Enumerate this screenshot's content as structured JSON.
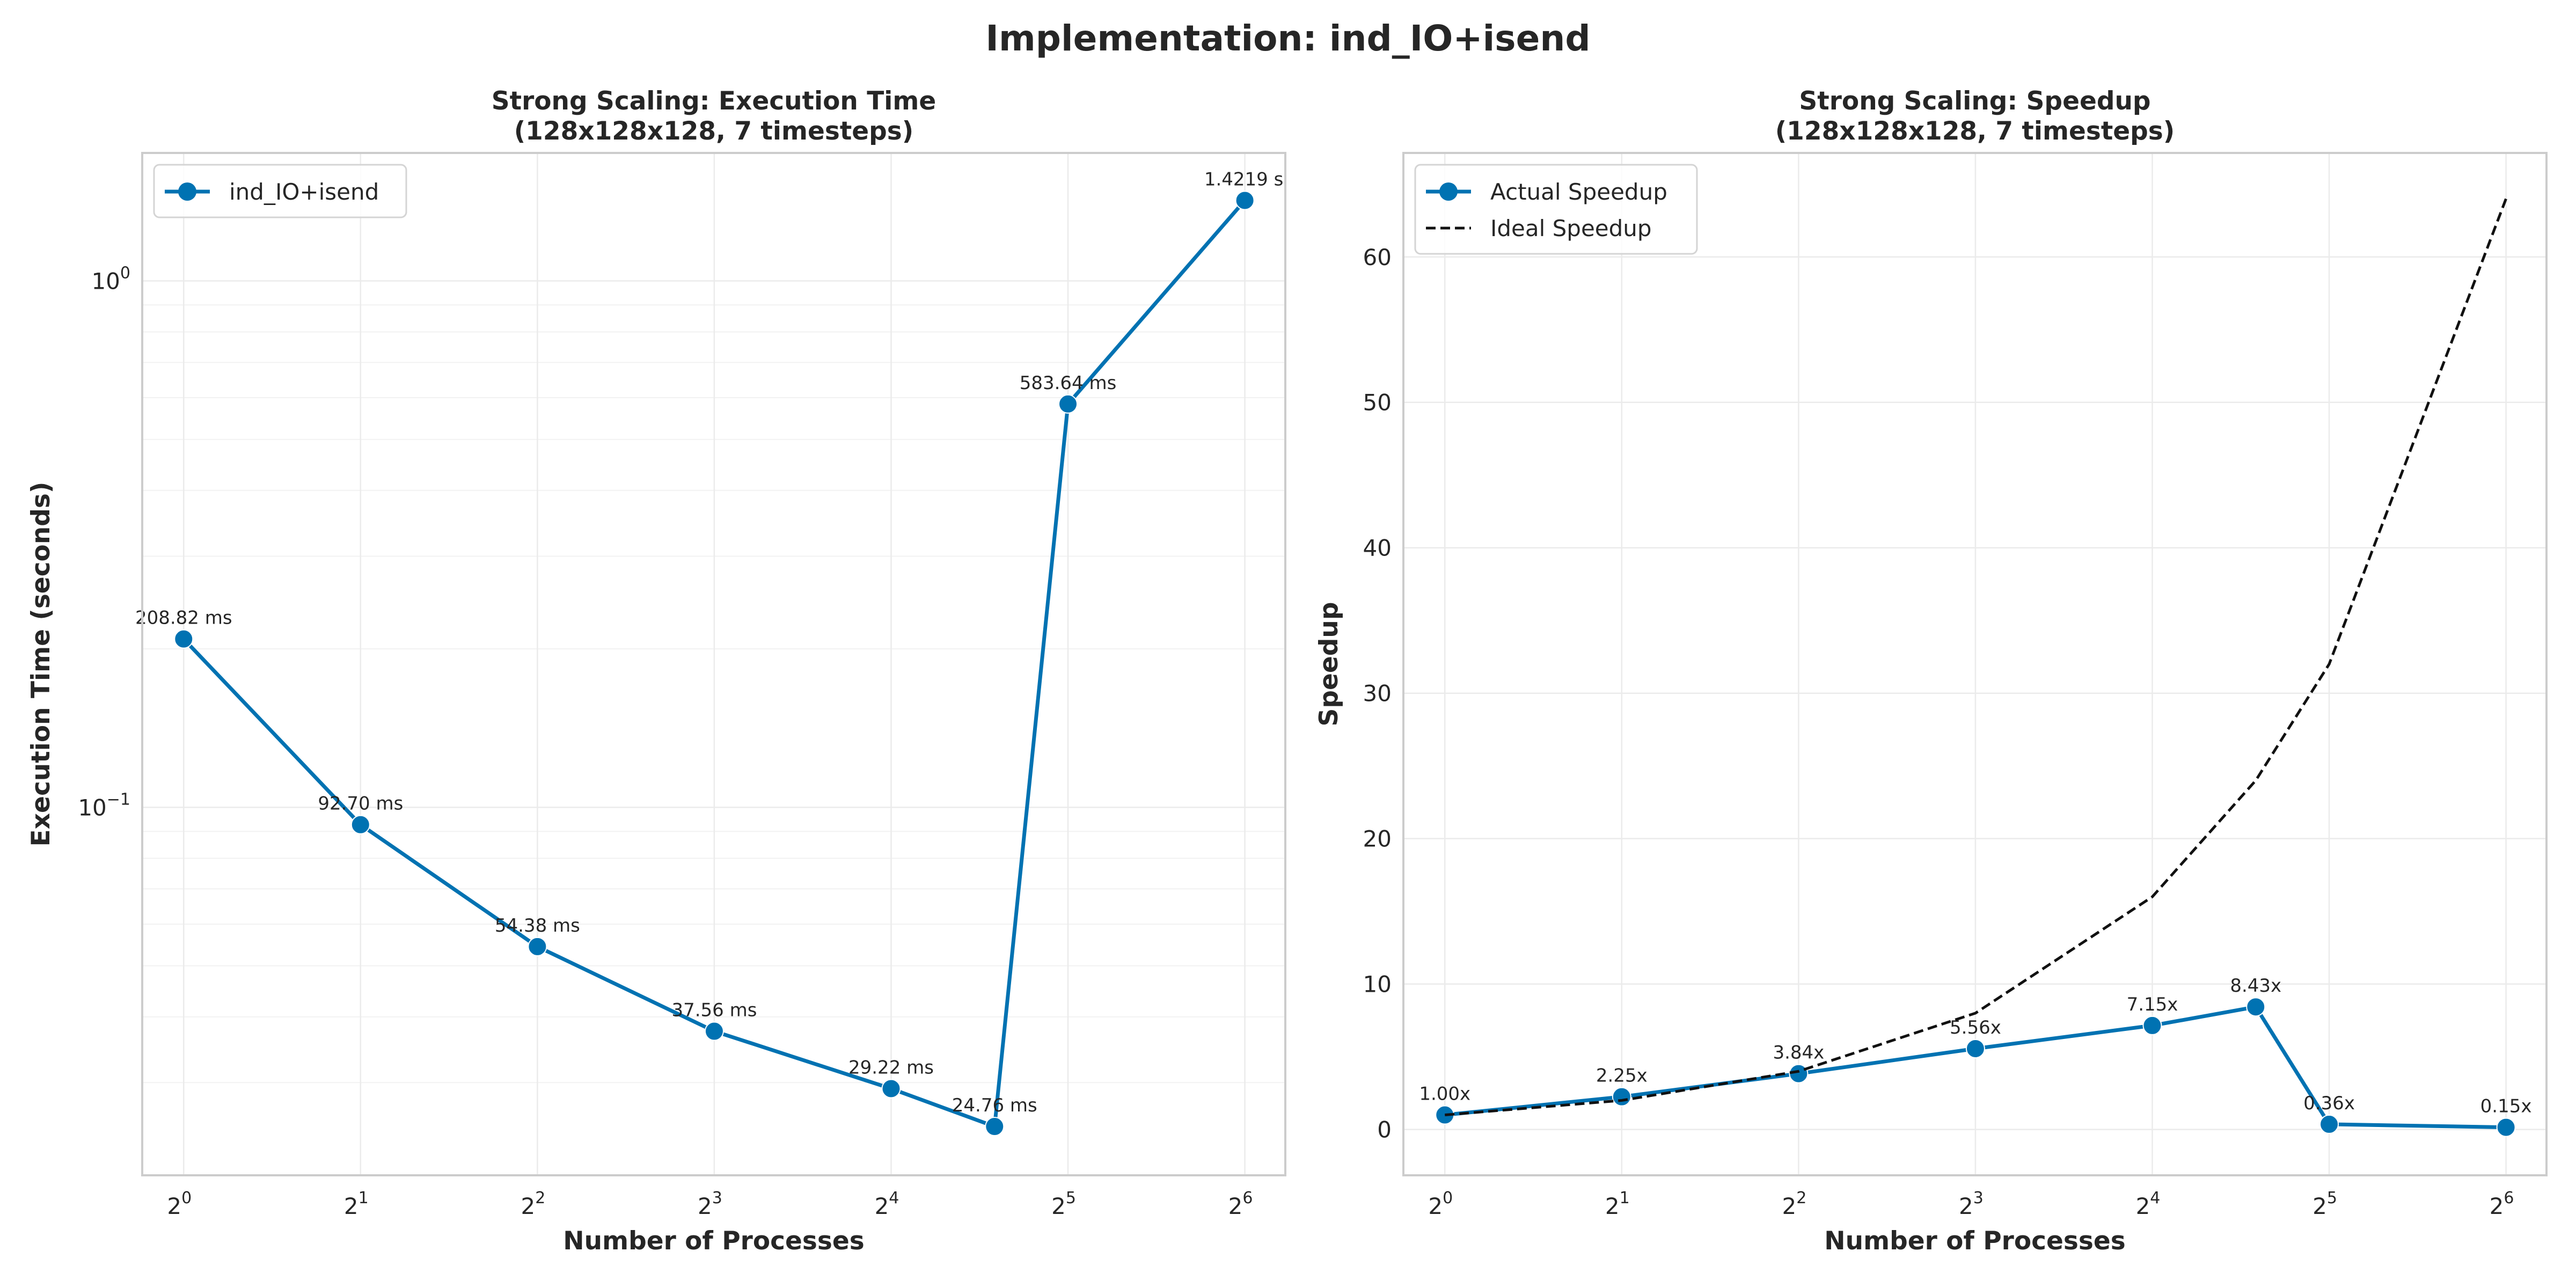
{
  "figure": {
    "title": "Implementation: ind_IO+isend"
  },
  "chart_data": [
    {
      "type": "line",
      "title": "Strong Scaling: Execution Time",
      "subtitle": "(128x128x128, 7 timesteps)",
      "xlabel": "Number of Processes",
      "ylabel": "Execution Time (seconds)",
      "xscale": "log2",
      "yscale": "log10",
      "x_ticks": [
        1,
        2,
        4,
        8,
        16,
        32,
        64
      ],
      "x_tick_labels": [
        {
          "base": "2",
          "exp": "0"
        },
        {
          "base": "2",
          "exp": "1"
        },
        {
          "base": "2",
          "exp": "2"
        },
        {
          "base": "2",
          "exp": "3"
        },
        {
          "base": "2",
          "exp": "4"
        },
        {
          "base": "2",
          "exp": "5"
        },
        {
          "base": "2",
          "exp": "6"
        }
      ],
      "y_ticks": [
        0.1,
        1
      ],
      "y_tick_labels": [
        {
          "base": "10",
          "exp": "−1"
        },
        {
          "base": "10",
          "exp": "0"
        }
      ],
      "xlim": [
        0.85,
        75
      ],
      "ylim": [
        0.02,
        1.75
      ],
      "grid": true,
      "legend_position": "top-left",
      "series": [
        {
          "name": "ind_IO+isend",
          "color": "#0072b2",
          "x": [
            1,
            2,
            4,
            8,
            16,
            24,
            32,
            64
          ],
          "y": [
            0.20882,
            0.0927,
            0.05438,
            0.03756,
            0.02922,
            0.02476,
            0.58364,
            1.4219
          ],
          "labels": [
            "208.82 ms",
            "92.70 ms",
            "54.38 ms",
            "37.56 ms",
            "29.22 ms",
            "24.76 ms",
            "583.64 ms",
            "1.4219 s"
          ]
        }
      ]
    },
    {
      "type": "line",
      "title": "Strong Scaling: Speedup",
      "subtitle": "(128x128x128, 7 timesteps)",
      "xlabel": "Number of Processes",
      "ylabel": "Speedup",
      "xscale": "log2",
      "yscale": "linear",
      "x_ticks": [
        1,
        2,
        4,
        8,
        16,
        32,
        64
      ],
      "x_tick_labels": [
        {
          "base": "2",
          "exp": "0"
        },
        {
          "base": "2",
          "exp": "1"
        },
        {
          "base": "2",
          "exp": "2"
        },
        {
          "base": "2",
          "exp": "3"
        },
        {
          "base": "2",
          "exp": "4"
        },
        {
          "base": "2",
          "exp": "5"
        },
        {
          "base": "2",
          "exp": "6"
        }
      ],
      "y_ticks": [
        0,
        10,
        20,
        30,
        40,
        50,
        60
      ],
      "y_tick_labels": [
        "0",
        "10",
        "20",
        "30",
        "40",
        "50",
        "60"
      ],
      "xlim": [
        0.85,
        75
      ],
      "ylim": [
        -3.15,
        67.15
      ],
      "grid": true,
      "legend_position": "top-left",
      "series": [
        {
          "name": "Actual Speedup",
          "color": "#0072b2",
          "style": "solid-marker",
          "x": [
            1,
            2,
            4,
            8,
            16,
            24,
            32,
            64
          ],
          "y": [
            1.0,
            2.25,
            3.84,
            5.56,
            7.15,
            8.43,
            0.36,
            0.15
          ],
          "labels": [
            "1.00x",
            "2.25x",
            "3.84x",
            "5.56x",
            "7.15x",
            "8.43x",
            "0.36x",
            "0.15x"
          ]
        },
        {
          "name": "Ideal Speedup",
          "color": "#111111",
          "style": "dashed",
          "x": [
            1,
            2,
            4,
            8,
            16,
            24,
            32,
            64
          ],
          "y": [
            1,
            2,
            4,
            8,
            16,
            24,
            32,
            64
          ]
        }
      ]
    }
  ]
}
